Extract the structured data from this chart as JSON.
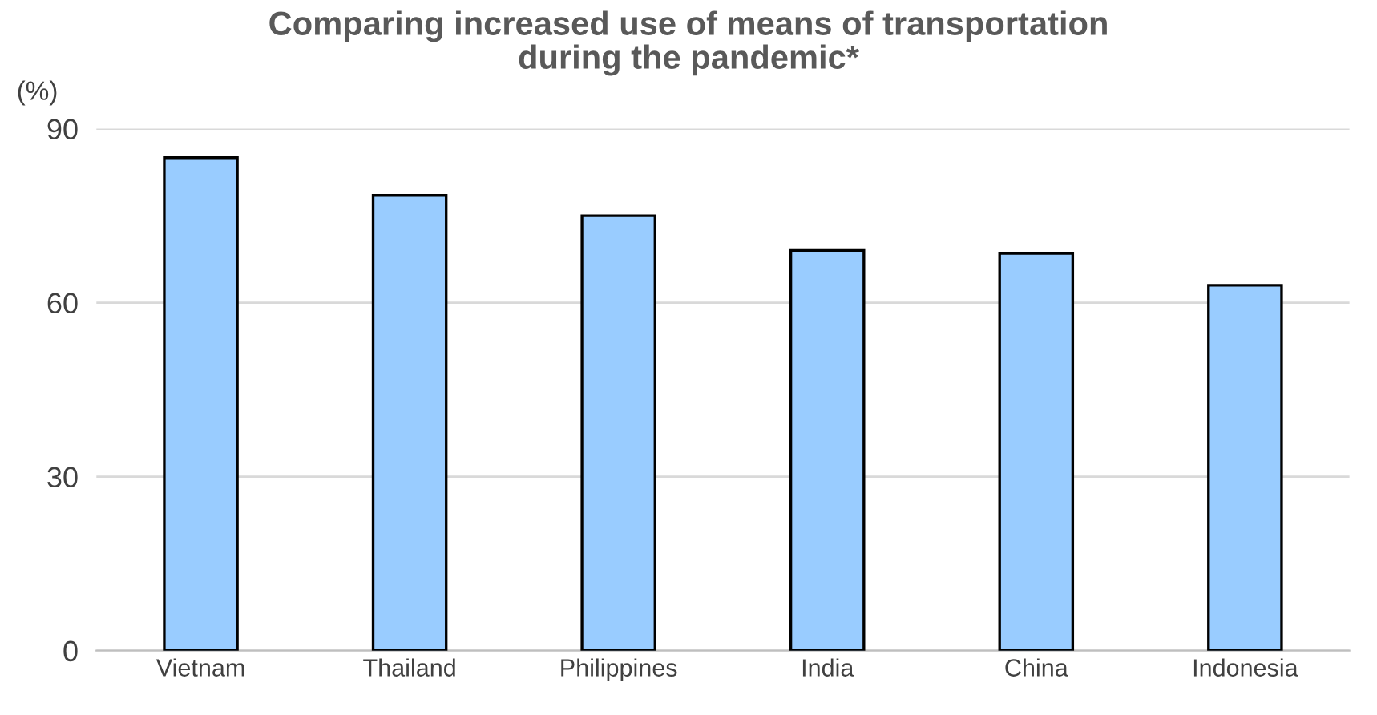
{
  "chart_data": {
    "type": "bar",
    "title": "Comparing increased use of means of transportation\nduring the pandemic*",
    "ylabel": "(%)",
    "categories": [
      "Vietnam",
      "Thailand",
      "Philippines",
      "India",
      "China",
      "Indonesia"
    ],
    "values": [
      85,
      78.5,
      75,
      69,
      68.5,
      63
    ],
    "color": "#99ccff",
    "ylim": [
      0,
      90
    ],
    "yticks": [
      0,
      30,
      60,
      90
    ],
    "grid": "y"
  }
}
